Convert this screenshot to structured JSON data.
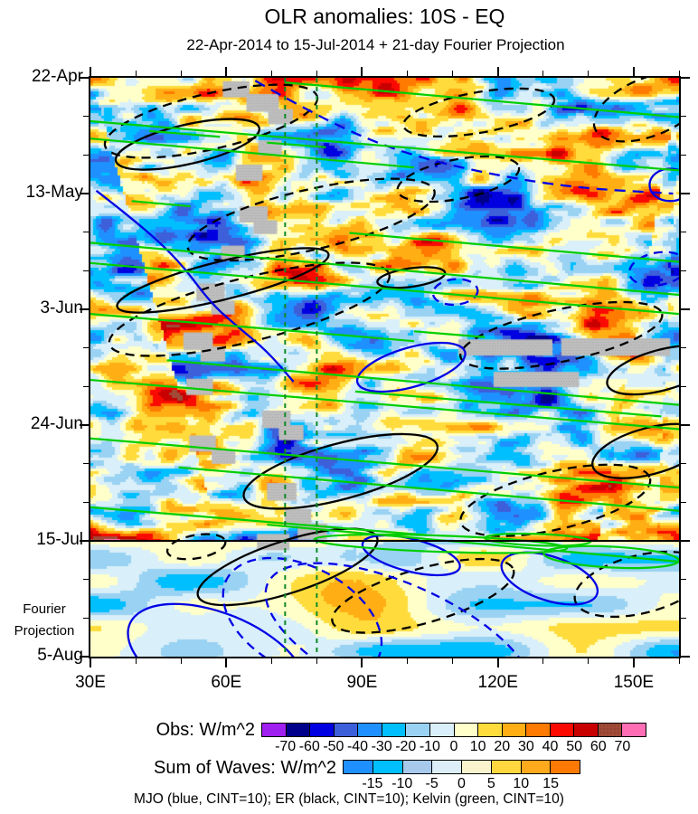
{
  "title": "OLR anomalies: 10S - EQ",
  "subtitle": "22-Apr-2014 to 15-Jul-2014 + 21-day Fourier Projection",
  "caption": "MJO (blue, CINT=10); ER (black, CINT=10); Kelvin (green, CINT=10)",
  "y_axis": {
    "total_days": 105,
    "major": [
      {
        "label": "22-Apr",
        "day": 0
      },
      {
        "label": "13-May",
        "day": 21
      },
      {
        "label": "3-Jun",
        "day": 42
      },
      {
        "label": "24-Jun",
        "day": 63
      },
      {
        "label": "15-Jul",
        "day": 84
      },
      {
        "label": "5-Aug",
        "day": 105
      }
    ],
    "minor_days": [
      7,
      14,
      28,
      35,
      49,
      56,
      70,
      77,
      91,
      98
    ],
    "side_note_line1": "Fourier",
    "side_note_line2": "Projection"
  },
  "x_axis": {
    "major": [
      {
        "label": "30E",
        "lon": 30
      },
      {
        "label": "60E",
        "lon": 60
      },
      {
        "label": "90E",
        "lon": 90
      },
      {
        "label": "120E",
        "lon": 120
      },
      {
        "label": "150E",
        "lon": 150
      }
    ],
    "minor_lons": [
      40,
      50,
      70,
      80,
      100,
      110,
      130,
      140,
      160
    ]
  },
  "colorbars": {
    "obs": {
      "label": "Obs: W/m^2",
      "tick_labels": [
        "-70",
        "-60",
        "-50",
        "-40",
        "-30",
        "-20",
        "-10",
        "0",
        "10",
        "20",
        "30",
        "40",
        "50",
        "60",
        "70"
      ],
      "colors": [
        "#A020F0",
        "#00008B",
        "#0000E0",
        "#3D5FD9",
        "#1E90FF",
        "#00BFFF",
        "#99D2F2",
        "#D9EFF9",
        "#FFFFC9",
        "#FFDC3C",
        "#FFAE14",
        "#FF7A00",
        "#FA0A00",
        "#C80000",
        "#A14A38",
        "#FF6EB4"
      ],
      "stippled_index": 14
    },
    "sum": {
      "label": "Sum of Waves: W/m^2",
      "tick_labels": [
        "-15",
        "-10",
        "-5",
        "0",
        "5",
        "10",
        "15"
      ],
      "colors": [
        "#1E90FF",
        "#00BFFF",
        "#A6C9EC",
        "#DCEFF9",
        "#FAF4CE",
        "#FFD73E",
        "#FFA91C",
        "#FF7A05"
      ],
      "stippled_index": -1
    }
  },
  "chart_data": {
    "type": "heatmap",
    "subtype": "hovmoller-time-longitude",
    "field": "OLR anomaly (W/m^2)",
    "lat_band": "10S - EQ",
    "x_range_deg_east": [
      30,
      160
    ],
    "time_range": [
      "22-Apr-2014",
      "5-Aug-2014"
    ],
    "observed_through": "15-Jul-2014",
    "projection_label": "21-day Fourier Projection",
    "projection_start_day": 84,
    "fill_levels": [
      -70,
      -60,
      -50,
      -40,
      -30,
      -20,
      -10,
      0,
      10,
      20,
      30,
      40,
      50,
      60,
      70
    ],
    "wave_contour_interval": 10,
    "vertical_guides_lon": [
      73,
      80
    ],
    "noise_seed": 11,
    "colors": {
      "mjo": "#0000E6",
      "er": "#000000",
      "kelvin": "#00CE00",
      "guide": "#0E8A27",
      "missing": "#BFBFBF"
    },
    "missing_data_patches": [
      [
        0.225,
        0.006,
        0.045,
        0.028
      ],
      [
        0.265,
        0.028,
        0.055,
        0.03
      ],
      [
        0.302,
        0.054,
        0.042,
        0.026
      ],
      [
        0.285,
        0.108,
        0.04,
        0.026
      ],
      [
        0.247,
        0.15,
        0.045,
        0.028
      ],
      [
        0.253,
        0.222,
        0.048,
        0.028
      ],
      [
        0.277,
        0.246,
        0.04,
        0.024
      ],
      [
        0.222,
        0.29,
        0.04,
        0.026
      ],
      [
        0.18,
        0.355,
        0.048,
        0.03
      ],
      [
        0.205,
        0.385,
        0.04,
        0.024
      ],
      [
        0.158,
        0.44,
        0.05,
        0.03
      ],
      [
        0.187,
        0.464,
        0.042,
        0.026
      ],
      [
        0.163,
        0.52,
        0.045,
        0.028
      ],
      [
        0.625,
        0.452,
        0.16,
        0.028
      ],
      [
        0.8,
        0.45,
        0.185,
        0.03
      ],
      [
        0.685,
        0.508,
        0.145,
        0.026
      ],
      [
        0.292,
        0.575,
        0.048,
        0.03
      ],
      [
        0.32,
        0.6,
        0.042,
        0.026
      ],
      [
        0.168,
        0.618,
        0.045,
        0.028
      ],
      [
        0.206,
        0.642,
        0.04,
        0.025
      ],
      [
        0.3,
        0.7,
        0.05,
        0.03
      ],
      [
        0.33,
        0.745,
        0.045,
        0.028
      ],
      [
        0.352,
        0.77,
        0.05,
        0.028
      ],
      [
        0.283,
        0.788,
        0.055,
        0.028
      ]
    ],
    "contours": {
      "mjo_ellipses": [
        [
          0.62,
          0.37,
          0.038,
          0.022,
          -5,
          1
        ],
        [
          0.985,
          0.185,
          0.035,
          0.028,
          0,
          0
        ],
        [
          0.965,
          0.33,
          0.05,
          0.028,
          -10,
          1
        ],
        [
          0.545,
          0.5,
          0.095,
          0.034,
          -16,
          0
        ],
        [
          0.215,
          1.005,
          0.16,
          0.08,
          22,
          0
        ],
        [
          0.525,
          0.975,
          0.245,
          0.1,
          24,
          1
        ],
        [
          0.545,
          0.825,
          0.085,
          0.028,
          14,
          0
        ],
        [
          0.36,
          0.935,
          0.145,
          0.09,
          28,
          1
        ],
        [
          0.78,
          0.865,
          0.085,
          0.038,
          18,
          0
        ]
      ],
      "mjo_paths": [
        {
          "pts": [
            [
              0.01,
              0.195
            ],
            [
              0.08,
              0.25
            ],
            [
              0.15,
              0.315
            ],
            [
              0.205,
              0.39
            ],
            [
              0.25,
              0.43
            ],
            [
              0.3,
              0.472
            ],
            [
              0.345,
              0.525
            ]
          ],
          "dash": 0
        },
        {
          "pts": [
            [
              0.28,
              0.005
            ],
            [
              0.4,
              0.075
            ],
            [
              0.53,
              0.13
            ],
            [
              0.67,
              0.165
            ],
            [
              0.82,
              0.19
            ],
            [
              0.99,
              0.2
            ]
          ],
          "dash": 1
        }
      ],
      "er_ellipses": [
        [
          0.205,
          0.075,
          0.185,
          0.048,
          -13,
          1
        ],
        [
          0.165,
          0.115,
          0.125,
          0.034,
          -13,
          0
        ],
        [
          0.66,
          0.06,
          0.13,
          0.035,
          -10,
          1
        ],
        [
          0.95,
          0.05,
          0.1,
          0.05,
          -22,
          1
        ],
        [
          0.375,
          0.245,
          0.215,
          0.052,
          -13,
          1
        ],
        [
          0.625,
          0.175,
          0.105,
          0.034,
          -11,
          1
        ],
        [
          0.225,
          0.35,
          0.185,
          0.033,
          -14,
          0
        ],
        [
          0.27,
          0.4,
          0.245,
          0.055,
          -14,
          1
        ],
        [
          0.545,
          0.345,
          0.058,
          0.016,
          -8,
          0
        ],
        [
          0.8,
          0.445,
          0.175,
          0.045,
          -12,
          1
        ],
        [
          0.97,
          0.505,
          0.095,
          0.035,
          -15,
          0
        ],
        [
          0.425,
          0.68,
          0.17,
          0.048,
          -15,
          0
        ],
        [
          0.79,
          0.73,
          0.165,
          0.05,
          -13,
          1
        ],
        [
          0.95,
          0.645,
          0.1,
          0.04,
          -15,
          0
        ],
        [
          0.18,
          0.81,
          0.05,
          0.02,
          -10,
          1
        ],
        [
          0.335,
          0.845,
          0.16,
          0.045,
          -18,
          0
        ],
        [
          0.565,
          0.895,
          0.16,
          0.047,
          -16,
          1
        ],
        [
          0.935,
          0.875,
          0.115,
          0.05,
          -14,
          1
        ]
      ],
      "kelvin_lines": [
        [
          0.0,
          0.075,
          1.0,
          0.16
        ],
        [
          0.33,
          0.008,
          1.0,
          0.068
        ],
        [
          0.0,
          0.105,
          0.55,
          0.155
        ],
        [
          0.1,
          0.092,
          0.22,
          0.102
        ],
        [
          0.07,
          0.213,
          0.17,
          0.222
        ],
        [
          0.3,
          0.112,
          0.4,
          0.12
        ],
        [
          0.0,
          0.285,
          1.0,
          0.375
        ],
        [
          0.0,
          0.32,
          1.0,
          0.408
        ],
        [
          0.44,
          0.268,
          1.0,
          0.318
        ],
        [
          0.0,
          0.408,
          0.55,
          0.455
        ],
        [
          0.55,
          0.438,
          0.67,
          0.448
        ],
        [
          0.13,
          0.488,
          1.0,
          0.565
        ],
        [
          0.0,
          0.522,
          1.0,
          0.607
        ],
        [
          0.45,
          0.542,
          0.97,
          0.585
        ],
        [
          0.0,
          0.623,
          1.0,
          0.708
        ],
        [
          0.15,
          0.673,
          1.0,
          0.748
        ],
        [
          0.0,
          0.742,
          0.57,
          0.79
        ],
        [
          0.3,
          0.772,
          1.0,
          0.836
        ]
      ],
      "kelvin_ellipses": [
        [
          0.595,
          0.805,
          0.215,
          0.014,
          2
        ],
        [
          0.885,
          0.828,
          0.115,
          0.018,
          3
        ],
        [
          0.76,
          0.798,
          0.09,
          0.01,
          2
        ]
      ]
    }
  }
}
